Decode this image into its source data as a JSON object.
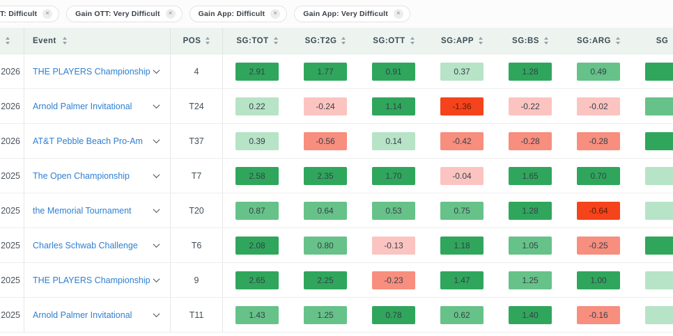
{
  "filters": {
    "chips": [
      {
        "label": "T: Difficult",
        "cut": true
      },
      {
        "label": "Gain OTT: Very Difficult",
        "cut": false
      },
      {
        "label": "Gain App: Difficult",
        "cut": false
      },
      {
        "label": "Gain App: Very Difficult",
        "cut": false
      }
    ],
    "close_icon": "×"
  },
  "table": {
    "event_label": "Event",
    "pos_label": "POS",
    "sg_columns": [
      "SG:TOT",
      "SG:T2G",
      "SG:OTT",
      "SG:APP",
      "SG:BS",
      "SG:ARG",
      "SG"
    ],
    "rows": [
      {
        "season": "2026",
        "event": "THE PLAYERS Championship",
        "pos": "4",
        "sg": [
          {
            "v": "2.91",
            "t": "g3"
          },
          {
            "v": "1.77",
            "t": "g3"
          },
          {
            "v": "0.91",
            "t": "g3"
          },
          {
            "v": "0.37",
            "t": "g1"
          },
          {
            "v": "1.28",
            "t": "g3"
          },
          {
            "v": "0.49",
            "t": "g2"
          },
          {
            "v": "",
            "t": "g3"
          }
        ]
      },
      {
        "season": "2026",
        "event": "Arnold Palmer Invitational",
        "pos": "T24",
        "sg": [
          {
            "v": "0.22",
            "t": "g1"
          },
          {
            "v": "-0.24",
            "t": "r1"
          },
          {
            "v": "1.14",
            "t": "g3"
          },
          {
            "v": "-1.36",
            "t": "r3"
          },
          {
            "v": "-0.22",
            "t": "r1"
          },
          {
            "v": "-0.02",
            "t": "r1"
          },
          {
            "v": "",
            "t": "g2"
          }
        ]
      },
      {
        "season": "2026",
        "event": "AT&T Pebble Beach Pro-Am",
        "pos": "T37",
        "sg": [
          {
            "v": "0.39",
            "t": "g1"
          },
          {
            "v": "-0.56",
            "t": "r2"
          },
          {
            "v": "0.14",
            "t": "g1"
          },
          {
            "v": "-0.42",
            "t": "r2"
          },
          {
            "v": "-0.28",
            "t": "r2"
          },
          {
            "v": "-0.28",
            "t": "r2"
          },
          {
            "v": "",
            "t": "g3"
          }
        ]
      },
      {
        "season": "2025",
        "event": "The Open Championship",
        "pos": "T7",
        "sg": [
          {
            "v": "2.58",
            "t": "g3"
          },
          {
            "v": "2.35",
            "t": "g3"
          },
          {
            "v": "1.70",
            "t": "g3"
          },
          {
            "v": "-0.04",
            "t": "r1"
          },
          {
            "v": "1.65",
            "t": "g3"
          },
          {
            "v": "0.70",
            "t": "g3"
          },
          {
            "v": "",
            "t": "g1"
          }
        ]
      },
      {
        "season": "2025",
        "event": "the Memorial Tournament",
        "pos": "T20",
        "sg": [
          {
            "v": "0.87",
            "t": "g2"
          },
          {
            "v": "0.64",
            "t": "g2"
          },
          {
            "v": "0.53",
            "t": "g2"
          },
          {
            "v": "0.75",
            "t": "g2"
          },
          {
            "v": "1.28",
            "t": "g3"
          },
          {
            "v": "-0.64",
            "t": "r3"
          },
          {
            "v": "",
            "t": "g1"
          }
        ]
      },
      {
        "season": "- 2025",
        "event": "Charles Schwab Challenge",
        "pos": "T6",
        "sg": [
          {
            "v": "2.08",
            "t": "g3"
          },
          {
            "v": "0.80",
            "t": "g2"
          },
          {
            "v": "-0.13",
            "t": "r1"
          },
          {
            "v": "1.18",
            "t": "g3"
          },
          {
            "v": "1.05",
            "t": "g2"
          },
          {
            "v": "-0.25",
            "t": "r2"
          },
          {
            "v": "",
            "t": "g3"
          }
        ]
      },
      {
        "season": "2025",
        "event": "THE PLAYERS Championship",
        "pos": "9",
        "sg": [
          {
            "v": "2.65",
            "t": "g3"
          },
          {
            "v": "2.25",
            "t": "g3"
          },
          {
            "v": "-0.23",
            "t": "r2"
          },
          {
            "v": "1.47",
            "t": "g3"
          },
          {
            "v": "1.25",
            "t": "g2"
          },
          {
            "v": "1.00",
            "t": "g3"
          },
          {
            "v": "",
            "t": "g1"
          }
        ]
      },
      {
        "season": "2025",
        "event": "Arnold Palmer Invitational",
        "pos": "T11",
        "sg": [
          {
            "v": "1.43",
            "t": "g2"
          },
          {
            "v": "1.25",
            "t": "g2"
          },
          {
            "v": "0.78",
            "t": "g3"
          },
          {
            "v": "0.62",
            "t": "g2"
          },
          {
            "v": "1.40",
            "t": "g3"
          },
          {
            "v": "-0.16",
            "t": "r2"
          },
          {
            "v": "",
            "t": "g1"
          }
        ]
      }
    ]
  },
  "colors": {
    "g1": "#b7e3c6",
    "g2": "#66c288",
    "g3": "#2fa65c",
    "r1": "#fcc4c0",
    "r2": "#f78e7e",
    "r3": "#f5431b",
    "link": "#2e7fd1",
    "header_bg": "#edf4f0"
  }
}
